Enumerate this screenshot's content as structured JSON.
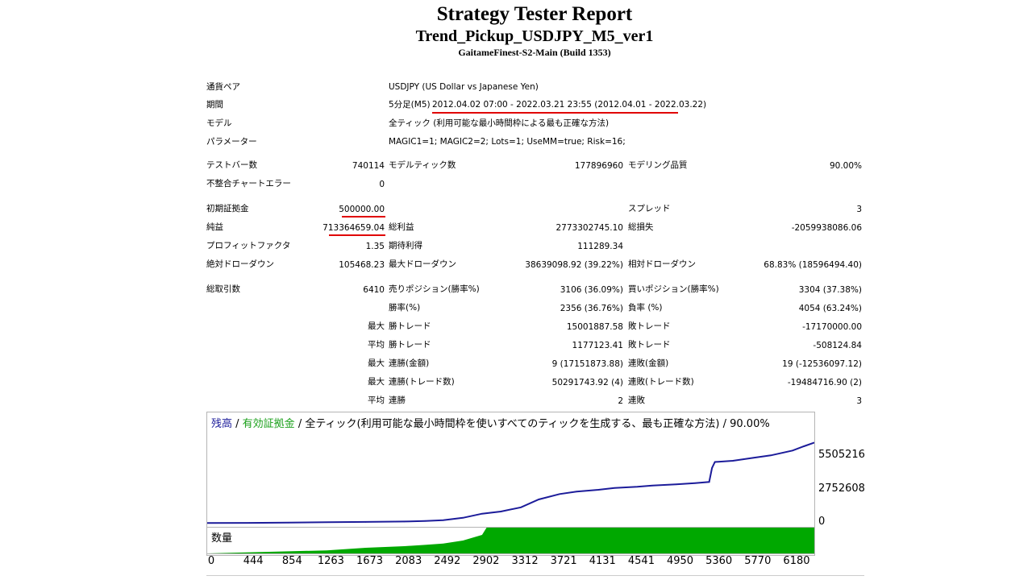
{
  "header": {
    "title": "Strategy Tester Report",
    "ea_name": "Trend_Pickup_USDJPY_M5_ver1",
    "server": "GaitameFinest-S2-Main (Build 1353)"
  },
  "info": {
    "symbol_label": "通貨ペア",
    "symbol_value": "USDJPY (US Dollar vs Japanese Yen)",
    "period_label": "期間",
    "period_prefix": "5分足(M5)",
    "period_value": "2012.04.02 07:00 - 2022.03.21 23:55 (2012.04.01 - 2022.03.22)",
    "model_label": "モデル",
    "model_value": "全ティック (利用可能な最小時間枠による最も正確な方法)",
    "params_label": "パラメーター",
    "params_value": "MAGIC1=1; MAGIC2=2; Lots=1; UseMM=true; Risk=16;"
  },
  "bars": {
    "test_bars_label": "テストバー数",
    "test_bars_value": "740114",
    "model_ticks_label": "モデルティック数",
    "model_ticks_value": "177896960",
    "model_quality_label": "モデリング品質",
    "model_quality_value": "90.00%",
    "mismatch_label": "不整合チャートエラー",
    "mismatch_value": "0"
  },
  "results": {
    "initial_deposit_label": "初期証拠金",
    "initial_deposit_value": "500000.00",
    "spread_label": "スプレッド",
    "spread_value": "3",
    "net_profit_label": "純益",
    "net_profit_value": "713364659.04",
    "gross_profit_label": "総利益",
    "gross_profit_value": "2773302745.10",
    "gross_loss_label": "総損失",
    "gross_loss_value": "-2059938086.06",
    "profit_factor_label": "プロフィットファクタ",
    "profit_factor_value": "1.35",
    "expected_payoff_label": "期待利得",
    "expected_payoff_value": "111289.34",
    "abs_dd_label": "絶対ドローダウン",
    "abs_dd_value": "105468.23",
    "max_dd_label": "最大ドローダウン",
    "max_dd_value": "38639098.92 (39.22%)",
    "rel_dd_label": "相対ドローダウン",
    "rel_dd_value": "68.83% (18596494.40)"
  },
  "trades": {
    "total_label": "総取引数",
    "total_value": "6410",
    "short_label": "売りポジション(勝率%)",
    "short_value": "3106 (36.09%)",
    "long_label": "買いポジション(勝率%)",
    "long_value": "3304 (37.38%)",
    "win_label": "勝率(%)",
    "win_value": "2356 (36.76%)",
    "loss_label": "負率 (%)",
    "loss_value": "4054 (63.24%)",
    "largest_prefix": "最大",
    "largest_win_label": "勝トレード",
    "largest_win_value": "15001887.58",
    "largest_loss_label": "敗トレード",
    "largest_loss_value": "-17170000.00",
    "average_prefix": "平均",
    "avg_win_label": "勝トレード",
    "avg_win_value": "1177123.41",
    "avg_loss_label": "敗トレード",
    "avg_loss_value": "-508124.84",
    "max_consec_prefix": "最大",
    "consec_wins_money_label": "連勝(金額)",
    "consec_wins_money_value": "9 (17151873.88)",
    "consec_losses_money_label": "連敗(金額)",
    "consec_losses_money_value": "19 (-12536097.12)",
    "max_consec2_prefix": "最大",
    "consec_profit_label": "連勝(トレード数)",
    "consec_profit_value": "50291743.92 (4)",
    "consec_loss_label": "連敗(トレード数)",
    "consec_loss_value": "-19484716.90 (2)",
    "avg_consec_prefix": "平均",
    "avg_consec_wins_label": "連勝",
    "avg_consec_wins_value": "2",
    "avg_consec_losses_label": "連敗",
    "avg_consec_losses_value": "3"
  },
  "chart_legend": {
    "balance": "残高",
    "sep1": " / ",
    "equity": "有効証拠金",
    "rest": " / 全ティック(利用可能な最小時間枠を使いすべてのティックを生成する、最も正確な方法) / 90.00%",
    "volume_label": "数量"
  },
  "chart_data": {
    "type": "line",
    "title": "",
    "xlabel": "",
    "ylabel": "",
    "x_ticks": [
      "0",
      "444",
      "854",
      "1263",
      "1673",
      "2083",
      "2492",
      "2902",
      "3312",
      "3721",
      "4131",
      "4541",
      "4950",
      "5360",
      "5770",
      "6180"
    ],
    "y_ticks": [
      "0",
      "2752608",
      "5505216"
    ],
    "xlim": [
      0,
      6410
    ],
    "ylim": [
      0,
      7200000
    ],
    "colors": {
      "balance": "#1c1c9a",
      "equity": "#1aa01a",
      "volume": "#00a800"
    },
    "series": [
      {
        "name": "残高",
        "x": [
          0,
          444,
          854,
          1263,
          1673,
          2083,
          2300,
          2492,
          2700,
          2902,
          3100,
          3312,
          3500,
          3721,
          3900,
          4131,
          4300,
          4541,
          4700,
          4950,
          5150,
          5300,
          5330,
          5360,
          5550,
          5770,
          5950,
          6180,
          6300,
          6410
        ],
        "values": [
          50000,
          60000,
          80000,
          110000,
          140000,
          170000,
          220000,
          280000,
          480000,
          820000,
          1000000,
          1350000,
          2000000,
          2450000,
          2650000,
          2800000,
          2950000,
          3050000,
          3150000,
          3250000,
          3350000,
          3450000,
          4600000,
          5100000,
          5200000,
          5450000,
          5650000,
          6050000,
          6400000,
          6700000
        ]
      }
    ],
    "volume": {
      "x": [
        0,
        1263,
        1673,
        2083,
        2300,
        2492,
        2700,
        2902,
        2950,
        6410
      ],
      "values": [
        0,
        0.12,
        0.22,
        0.28,
        0.33,
        0.38,
        0.5,
        0.72,
        1,
        1
      ]
    }
  }
}
